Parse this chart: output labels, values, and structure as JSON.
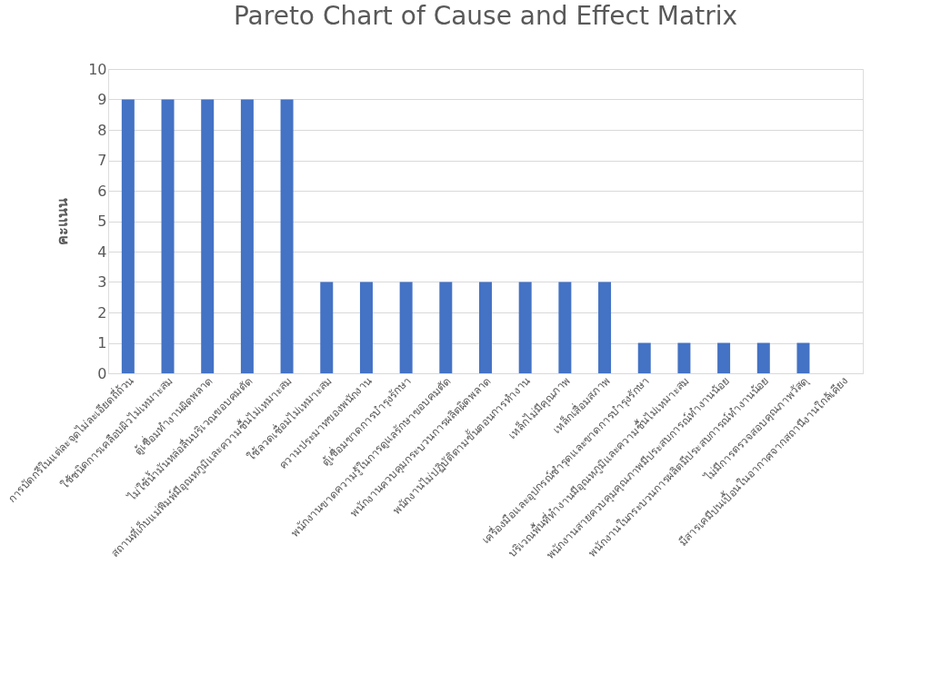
{
  "chart_data": {
    "type": "bar",
    "title": "Pareto Chart of Cause and Effect Matrix",
    "ylabel": "คะแนน",
    "categories": [
      "การบัดกรีในแต่ละจุดไม่ละเอียดถี่ถ้วน",
      "ใช้ชนิดการเคลือบผิวไม่เหมาะสม",
      "ตู้เชื่อมทำงานผิดพลาด",
      "ไม่ใช้น้ำมันหล่อลื่นบริเวณขอบคมตัด",
      "สถานที่เก็บแม่พิมพ์มีอุณหภูมิและความชื้นไม่เหมาะสม",
      "ใช้ลวดเชื่อมไม่เหมาะสม",
      "ความประมาทของพนักงาน",
      "ตู้เชื่อมขาดการบำรุงรักษา",
      "พนักงานขาดความรู้ในการดูแลรักษาขอบคมตัด",
      "พนักงานควบคุมกระบวนการผลิตผิดพลาด",
      "พนักงานไม่ปฏิบัติตามขั้นตอนการทำงาน",
      "เหล็กไม่มีคุณภาพ",
      "เหล็กเสื่อมสภาพ",
      "เครื่องมือและอุปกรณ์ชำรุดและขาดการบำรุงรักษา",
      "บริเวณพื้นที่ทำงานมีอุณหภูมิและความชื้นไม่เหมาะสม",
      "พนักงานสายควบคุมคุณภาพมีประสบการณ์ทำงานน้อย",
      "พนักงานในกระบวนการผลิตมีประสบการณ์ทำงานน้อย",
      "ไม่มีการตรวจสอบคุณภาพวัสดุ",
      "มีสารเคมีปนเปื้อนในอากาศจากสถานีงานใกล้เคียง"
    ],
    "values": [
      9,
      9,
      9,
      9,
      9,
      3,
      3,
      3,
      3,
      3,
      3,
      3,
      3,
      1,
      1,
      1,
      1,
      1,
      0
    ],
    "color": "#4472c4",
    "ylim": [
      0,
      10
    ],
    "yticks": [
      0,
      1,
      2,
      3,
      4,
      5,
      6,
      7,
      8,
      9,
      10
    ],
    "grid": "y"
  }
}
